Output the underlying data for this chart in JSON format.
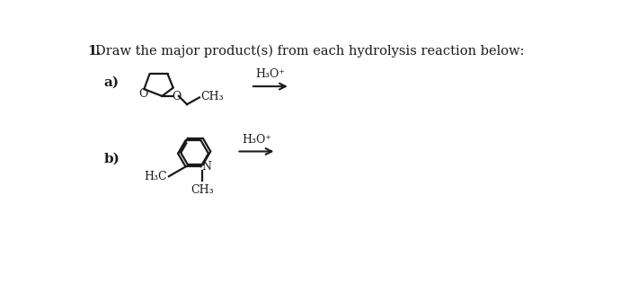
{
  "title_number": "1.",
  "title_text": "  Draw the major product(s) from each hydrolysis reaction below:",
  "label_a": "a)",
  "label_b": "b)",
  "reagent_a": "H₃O⁺",
  "reagent_b": "H₃O⁺",
  "bg_color": "#ffffff",
  "line_color": "#1a1a1a",
  "text_color": "#1a1a1a",
  "lw": 1.6
}
